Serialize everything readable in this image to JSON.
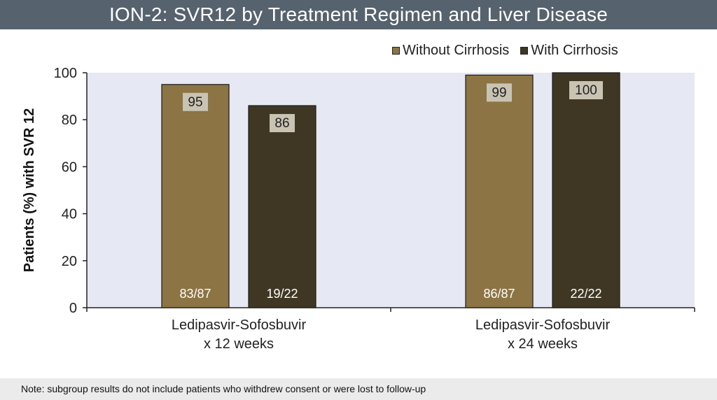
{
  "header": {
    "title": "ION-2: SVR12 by Treatment Regimen and Liver Disease"
  },
  "footnote": "Note: subgroup results do not include patients who withdrew consent or were lost to follow-up",
  "colors": {
    "title_bar": "#56626d",
    "plot_background": "#e6e9f3",
    "without_cirrhosis": "#8c7444",
    "with_cirrhosis": "#3f3724",
    "value_label_bg": "#c9c3b3"
  },
  "chart_data": {
    "type": "bar",
    "title": "ION-2: SVR12 by Treatment Regimen and Liver Disease",
    "ylabel": "Patients (%) with SVR 12",
    "xlabel": "",
    "ylim": [
      0,
      100
    ],
    "yticks": [
      "0",
      "20",
      "40",
      "60",
      "80",
      "100"
    ],
    "grid": false,
    "legend_position": "top-right",
    "categories": [
      [
        "Ledipasvir-Sofosbuvir",
        "x 12 weeks"
      ],
      [
        "Ledipasvir-Sofosbuvir",
        "x 24 weeks"
      ]
    ],
    "series": [
      {
        "name": "Without Cirrhosis",
        "values": [
          95,
          99
        ],
        "value_labels": [
          "95",
          "99"
        ],
        "fractions": [
          "83/87",
          "86/87"
        ]
      },
      {
        "name": "With Cirrhosis",
        "values": [
          86,
          100
        ],
        "value_labels": [
          "86",
          "100"
        ],
        "fractions": [
          "19/22",
          "22/22"
        ]
      }
    ]
  }
}
